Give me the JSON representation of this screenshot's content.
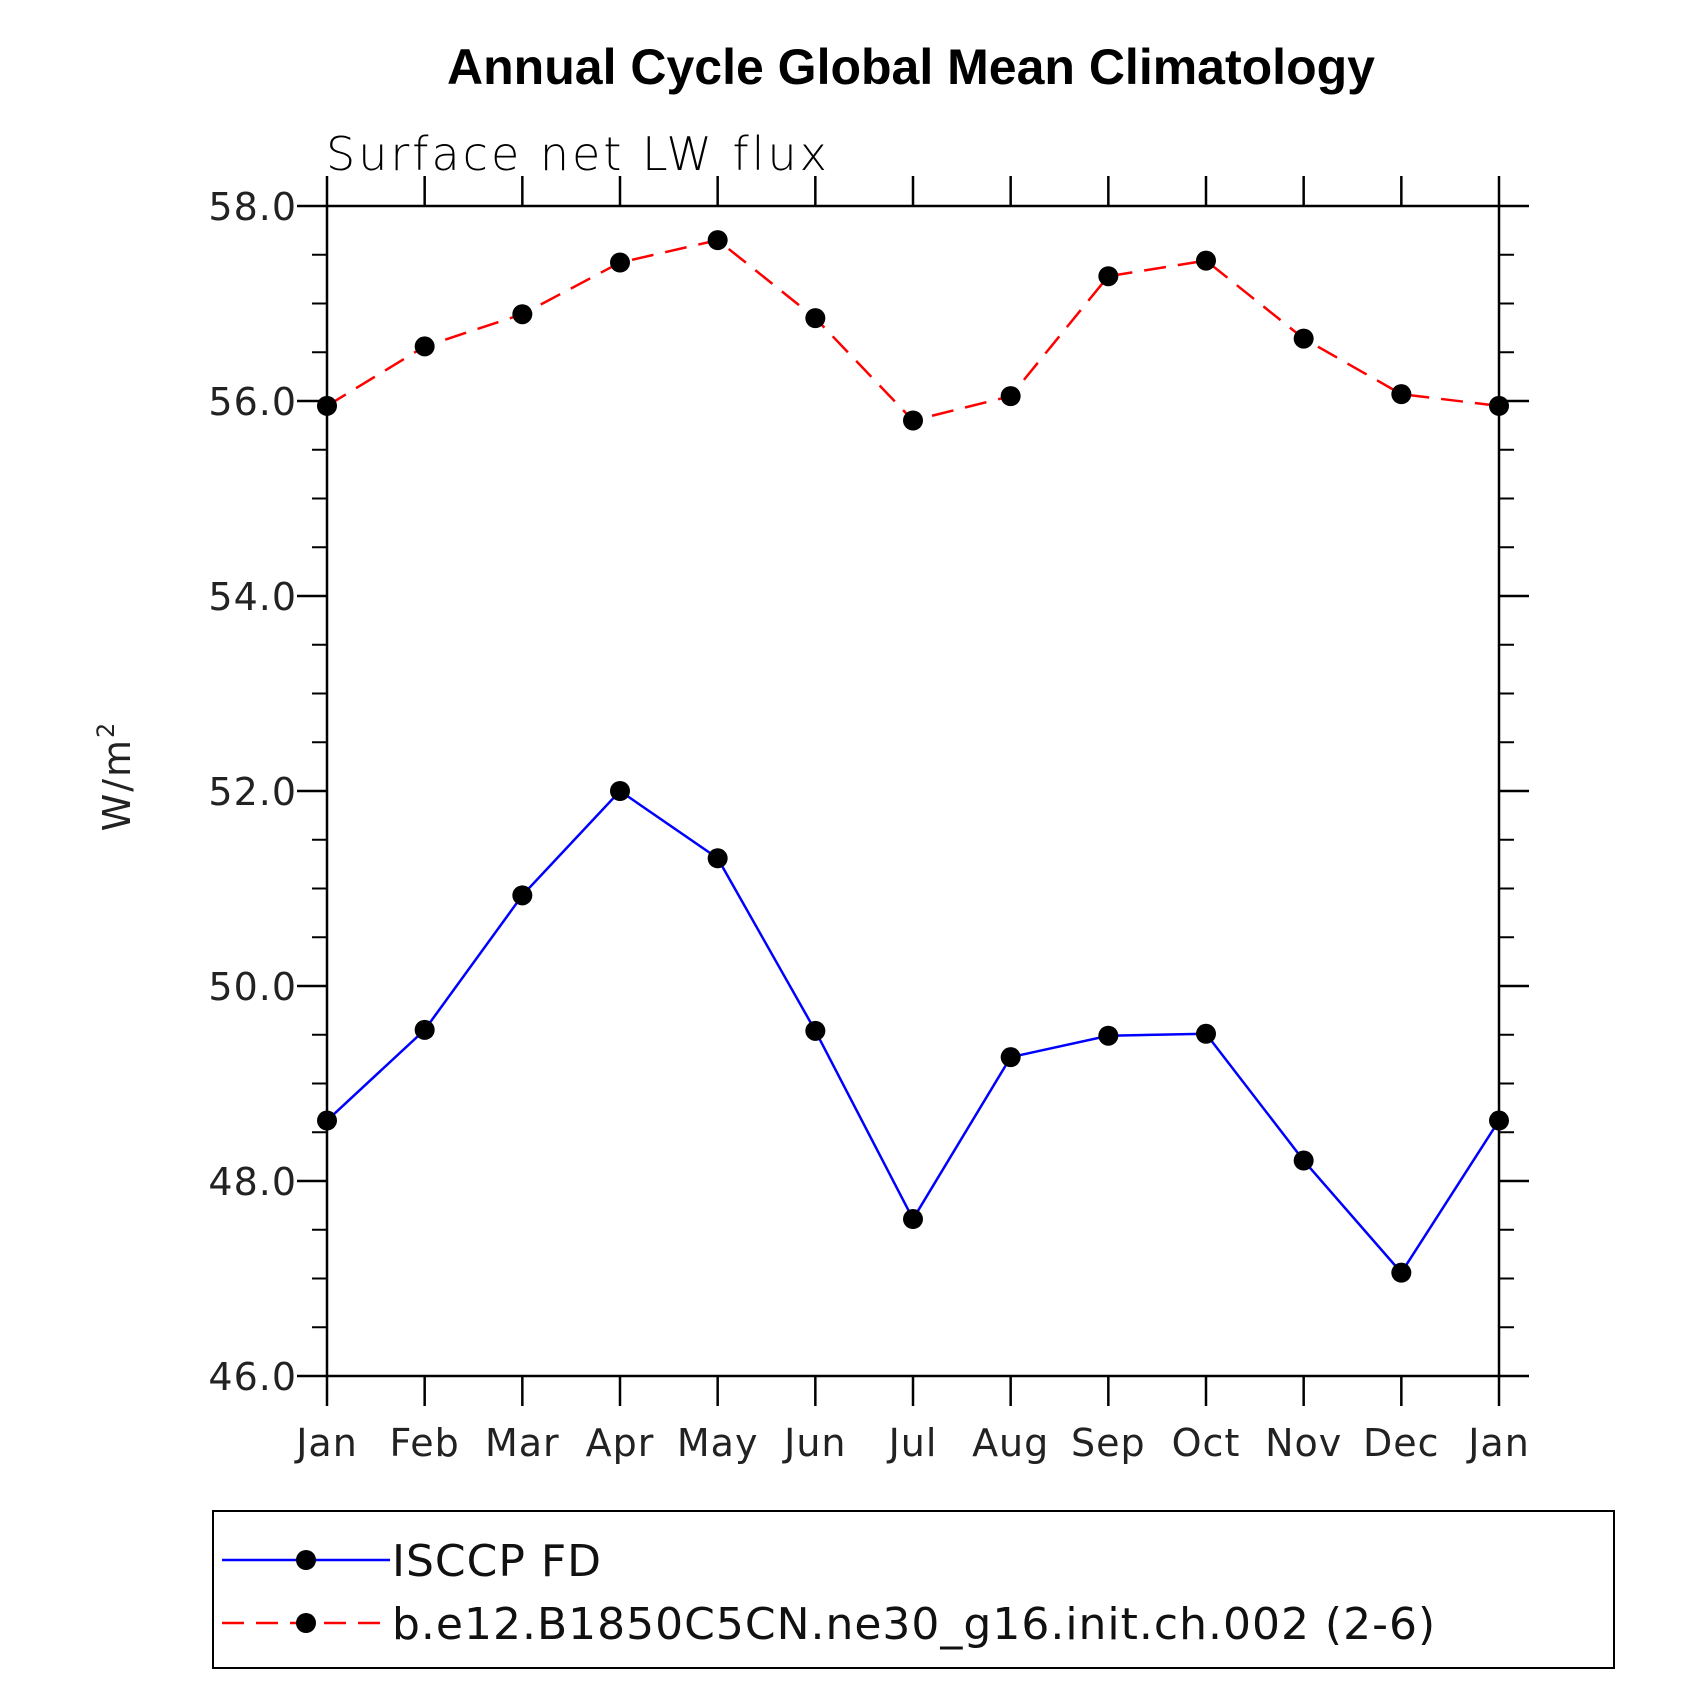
{
  "chart_data": {
    "type": "line",
    "title": "Annual Cycle Global Mean Climatology",
    "subtitle": "Surface net LW flux",
    "ylabel": "W/m",
    "ylabel_sup": "2",
    "xlabel": "",
    "categories": [
      "Jan",
      "Feb",
      "Mar",
      "Apr",
      "May",
      "Jun",
      "Jul",
      "Aug",
      "Sep",
      "Oct",
      "Nov",
      "Dec",
      "Jan"
    ],
    "ylim": [
      46.0,
      58.0
    ],
    "yticks": [
      "46.0",
      "48.0",
      "50.0",
      "52.0",
      "54.0",
      "56.0",
      "58.0"
    ],
    "grid": false,
    "legend_position": "bottom",
    "series": [
      {
        "name": "ISCCP FD",
        "color": "#0000ff",
        "line_style": "solid",
        "marker": "filled-circle",
        "values": [
          48.62,
          49.55,
          50.93,
          52.0,
          51.31,
          49.54,
          47.61,
          49.27,
          49.49,
          49.51,
          48.21,
          47.06,
          48.62
        ]
      },
      {
        "name": "b.e12.B1850C5CN.ne30_g16.init.ch.002 (2-6)",
        "color": "#ff0000",
        "line_style": "dashed",
        "marker": "filled-circle",
        "values": [
          55.95,
          56.56,
          56.89,
          57.42,
          57.65,
          56.85,
          55.8,
          56.05,
          57.28,
          57.44,
          56.64,
          56.07,
          55.95
        ]
      }
    ]
  }
}
